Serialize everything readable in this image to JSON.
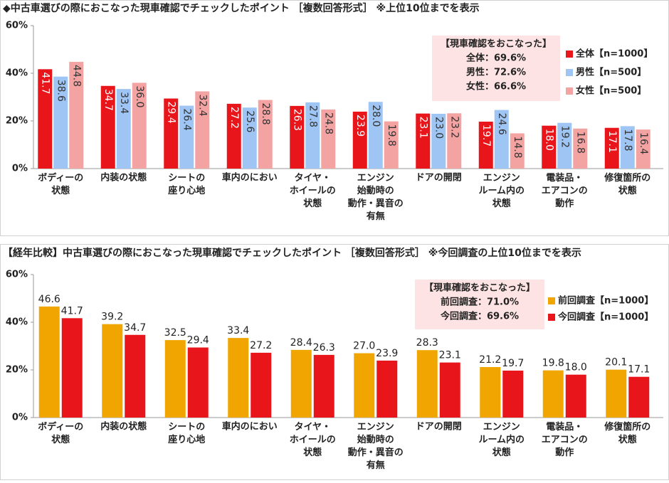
{
  "chart_data": [
    {
      "type": "bar",
      "title": "◆中古車選びの際におこなった現車確認でチェックしたポイント ［複数回答形式］ ※上位10位までを表示",
      "categories": [
        "ボディーの\n状態",
        "内装の状態",
        "シートの\n座り心地",
        "車内のにおい",
        "タイヤ・\nホイールの\n状態",
        "エンジン\n始動時の\n動作・異音の\n有無",
        "ドアの開閉",
        "エンジン\nルーム内の\n状態",
        "電装品・\nエアコンの\n動作",
        "修復箇所の\n状態"
      ],
      "series": [
        {
          "name": "全体【n=1000】",
          "color": "#e8161b",
          "values": [
            41.7,
            34.7,
            29.4,
            27.2,
            26.3,
            23.9,
            23.1,
            19.7,
            18.0,
            17.1
          ],
          "value_labels": [
            "41.7",
            "34.7",
            "29.4",
            "27.2",
            "26.3",
            "23.9",
            "23.1",
            "19.7",
            "18.0",
            "17.1"
          ]
        },
        {
          "name": "男性【n=500】",
          "color": "#9ec5f3",
          "values": [
            38.6,
            33.4,
            26.4,
            25.6,
            27.8,
            28.0,
            23.0,
            24.6,
            19.2,
            17.8
          ],
          "value_labels": [
            "38.6",
            "33.4",
            "26.4",
            "25.6",
            "27.8",
            "28.0",
            "23.0",
            "24.6",
            "19.2",
            "17.8"
          ]
        },
        {
          "name": "女性【n=500】",
          "color": "#f4a3a3",
          "values": [
            44.8,
            36.0,
            32.4,
            28.8,
            24.8,
            19.8,
            23.2,
            14.8,
            16.8,
            16.4
          ],
          "value_labels": [
            "44.8",
            "36.0",
            "32.4",
            "28.8",
            "24.8",
            "19.8",
            "23.2",
            "14.8",
            "16.8",
            "16.4"
          ]
        }
      ],
      "annotation": [
        "【現車確認をおこなった】",
        "全体：69.6%",
        "男性：72.6%",
        "女性：66.6%"
      ],
      "ylim": [
        0,
        60
      ],
      "yticks": [
        {
          "value": 0,
          "label": "0%"
        },
        {
          "value": 20,
          "label": "20%"
        },
        {
          "value": 40,
          "label": "40%"
        },
        {
          "value": 60,
          "label": "60%"
        }
      ],
      "legend": "right"
    },
    {
      "type": "bar",
      "title": "【経年比較】中古車選びの際におこなった現車確認でチェックしたポイント ［複数回答形式］ ※今回調査の上位10位までを表示",
      "categories": [
        "ボディーの\n状態",
        "内装の状態",
        "シートの\n座り心地",
        "車内のにおい",
        "タイヤ・\nホイールの\n状態",
        "エンジン\n始動時の\n動作・異音の\n有無",
        "ドアの開閉",
        "エンジン\nルーム内の\n状態",
        "電装品・\nエアコンの\n動作",
        "修復箇所の\n状態"
      ],
      "series": [
        {
          "name": "前回調査【n=1000】",
          "color": "#f0a500",
          "values": [
            46.6,
            39.2,
            32.5,
            33.4,
            28.4,
            27.0,
            28.3,
            21.2,
            19.8,
            20.1
          ],
          "value_labels": [
            "46.6",
            "39.2",
            "32.5",
            "33.4",
            "28.4",
            "27.0",
            "28.3",
            "21.2",
            "19.8",
            "20.1"
          ]
        },
        {
          "name": "今回調査【n=1000】",
          "color": "#e8161b",
          "values": [
            41.7,
            34.7,
            29.4,
            27.2,
            26.3,
            23.9,
            23.1,
            19.7,
            18.0,
            17.1
          ],
          "value_labels": [
            "41.7",
            "34.7",
            "29.4",
            "27.2",
            "26.3",
            "23.9",
            "23.1",
            "19.7",
            "18.0",
            "17.1"
          ]
        }
      ],
      "annotation": [
        "【現車確認をおこなった】",
        "前回調査：71.0%",
        "今回調査：69.6%"
      ],
      "ylim": [
        0,
        60
      ],
      "yticks": [
        {
          "value": 0,
          "label": "0%"
        },
        {
          "value": 20,
          "label": "20%"
        },
        {
          "value": 40,
          "label": "40%"
        },
        {
          "value": 60,
          "label": "60%"
        }
      ],
      "legend": "right"
    }
  ]
}
